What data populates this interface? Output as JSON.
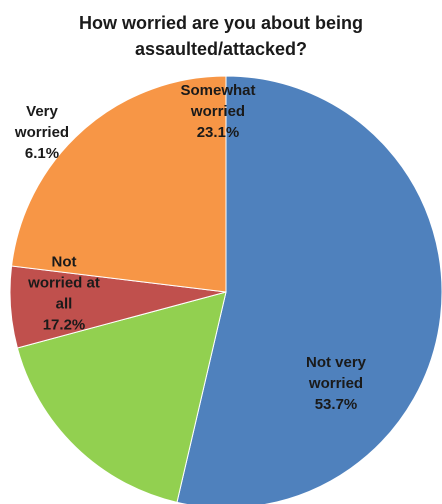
{
  "chart_data": {
    "type": "pie",
    "title_lines": [
      "How worried are you about being",
      "assaulted/attacked?"
    ],
    "slices": [
      {
        "label_lines": [
          "Not very",
          "worried"
        ],
        "value": 53.7,
        "value_label": "53.7%",
        "color": "#4f81bd"
      },
      {
        "label_lines": [
          "Not",
          "worried at",
          "all"
        ],
        "value": 17.2,
        "value_label": "17.2%",
        "color": "#92d050"
      },
      {
        "label_lines": [
          "Very",
          "worried"
        ],
        "value": 6.1,
        "value_label": "6.1%",
        "color": "#c0504d"
      },
      {
        "label_lines": [
          "Somewhat",
          "worried"
        ],
        "value": 23.1,
        "value_label": "23.1%",
        "color": "#f79646"
      }
    ]
  }
}
